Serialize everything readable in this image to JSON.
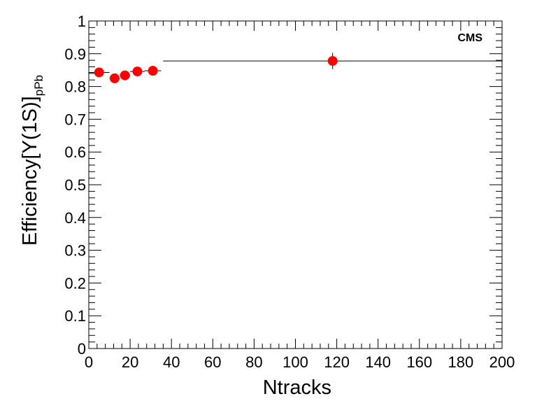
{
  "chart_data": {
    "type": "scatter",
    "title": "",
    "xlabel": "Ntracks",
    "ylabel": {
      "main": "Efficiency[Υ(1S)]",
      "subscript": "pPb"
    },
    "annotation": "CMS",
    "xlim": [
      0,
      200
    ],
    "ylim": [
      0,
      1
    ],
    "x_ticks": [
      "0",
      "20",
      "40",
      "60",
      "80",
      "100",
      "120",
      "140",
      "160",
      "180",
      "200"
    ],
    "y_ticks": [
      "0",
      "0.1",
      "0.2",
      "0.3",
      "0.4",
      "0.5",
      "0.6",
      "0.7",
      "0.8",
      "0.9",
      "1"
    ],
    "grid": false,
    "marker_color": "#ff0000",
    "series": [
      {
        "points": [
          {
            "x": 5,
            "y": 0.843,
            "xlo": 0,
            "xhi": 10,
            "yerr": 0.008
          },
          {
            "x": 12.5,
            "y": 0.825,
            "xlo": 10,
            "xhi": 15,
            "yerr": 0.008
          },
          {
            "x": 17.5,
            "y": 0.834,
            "xlo": 15,
            "xhi": 20,
            "yerr": 0.008
          },
          {
            "x": 23.5,
            "y": 0.846,
            "xlo": 20,
            "xhi": 27,
            "yerr": 0.008
          },
          {
            "x": 31,
            "y": 0.848,
            "xlo": 27,
            "xhi": 35,
            "yerr": 0.008
          },
          {
            "x": 118,
            "y": 0.878,
            "xlo": 36,
            "xhi": 200,
            "yerr": 0.025
          }
        ]
      }
    ]
  }
}
